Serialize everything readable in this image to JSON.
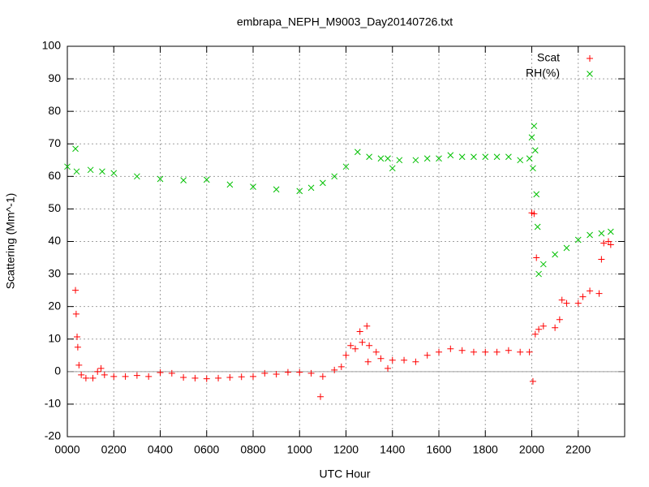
{
  "chart_data": {
    "type": "scatter",
    "title": "embrapa_NEPH_M9003_Day20140726.txt",
    "xlabel": "UTC Hour",
    "ylabel": "Scattering (Mm^-1)",
    "xlim": [
      0,
      2400
    ],
    "xticks": [
      {
        "value": 0,
        "label": "0000"
      },
      {
        "value": 200,
        "label": "0200"
      },
      {
        "value": 400,
        "label": "0400"
      },
      {
        "value": 600,
        "label": "0600"
      },
      {
        "value": 800,
        "label": "0800"
      },
      {
        "value": 1000,
        "label": "1000"
      },
      {
        "value": 1200,
        "label": "1200"
      },
      {
        "value": 1400,
        "label": "1400"
      },
      {
        "value": 1600,
        "label": "1600"
      },
      {
        "value": 1800,
        "label": "1800"
      },
      {
        "value": 2000,
        "label": "2000"
      },
      {
        "value": 2200,
        "label": "2200"
      }
    ],
    "ylim": [
      -20,
      100
    ],
    "yticks": [
      -20,
      -10,
      0,
      10,
      20,
      30,
      40,
      50,
      60,
      70,
      80,
      90,
      100
    ],
    "grid": true,
    "zero_line": true,
    "legend": "top-right",
    "series": [
      {
        "name": "Scat",
        "color": "#ff0000",
        "marker": "plus",
        "x": [
          35,
          38,
          42,
          45,
          50,
          60,
          80,
          110,
          130,
          145,
          160,
          200,
          250,
          300,
          350,
          400,
          450,
          500,
          550,
          600,
          650,
          700,
          750,
          800,
          850,
          900,
          950,
          1000,
          1050,
          1090,
          1100,
          1150,
          1180,
          1200,
          1220,
          1240,
          1260,
          1270,
          1290,
          1295,
          1300,
          1330,
          1350,
          1380,
          1400,
          1450,
          1500,
          1550,
          1600,
          1650,
          1700,
          1750,
          1800,
          1850,
          1900,
          1950,
          1990,
          2000,
          2005,
          2010,
          2015,
          2020,
          2030,
          2050,
          2100,
          2120,
          2130,
          2150,
          2200,
          2220,
          2250,
          2290,
          2300,
          2310,
          2330,
          2340
        ],
        "values": [
          25,
          17.7,
          10.7,
          7.5,
          2,
          -1,
          -2,
          -2,
          0,
          1,
          -1,
          -1.5,
          -1.5,
          -1.2,
          -1.5,
          -0.3,
          -0.5,
          -1.8,
          -2,
          -2.2,
          -2,
          -1.8,
          -1.6,
          -1.5,
          -0.5,
          -0.8,
          -0.2,
          -0.2,
          -0.5,
          -7.7,
          -1.5,
          0.5,
          1.5,
          5,
          8,
          7,
          12.3,
          9,
          14,
          3,
          8,
          6,
          4,
          1,
          3.5,
          3.5,
          3,
          5,
          6,
          7,
          6.5,
          6,
          6,
          6,
          6.5,
          6,
          6,
          48.8,
          -3,
          48.5,
          11.5,
          35,
          13,
          14,
          13.5,
          16,
          22,
          21,
          21,
          23,
          24.8,
          24,
          34.5,
          39.5,
          40,
          39
        ]
      },
      {
        "name": "RH(%)",
        "color": "#00c000",
        "marker": "cross",
        "x": [
          0,
          35,
          40,
          100,
          150,
          200,
          300,
          400,
          500,
          600,
          700,
          800,
          900,
          1000,
          1050,
          1100,
          1150,
          1200,
          1250,
          1300,
          1350,
          1380,
          1400,
          1430,
          1500,
          1550,
          1600,
          1650,
          1700,
          1750,
          1800,
          1850,
          1900,
          1950,
          1990,
          2000,
          2005,
          2010,
          2015,
          2020,
          2025,
          2030,
          2050,
          2100,
          2150,
          2200,
          2250,
          2300,
          2340
        ],
        "values": [
          63,
          68.5,
          61.5,
          62,
          61.5,
          61,
          60,
          59.2,
          58.8,
          59,
          57.5,
          56.8,
          56,
          55.5,
          56.5,
          58,
          60,
          63,
          67.5,
          66,
          65.5,
          65.5,
          62.5,
          65,
          65,
          65.5,
          65.5,
          66.5,
          66,
          66,
          66,
          66,
          66,
          65,
          65.5,
          72,
          62.5,
          75.5,
          68,
          54.5,
          44.5,
          30,
          33,
          36,
          38,
          40.5,
          42,
          42.5,
          43
        ]
      }
    ]
  }
}
